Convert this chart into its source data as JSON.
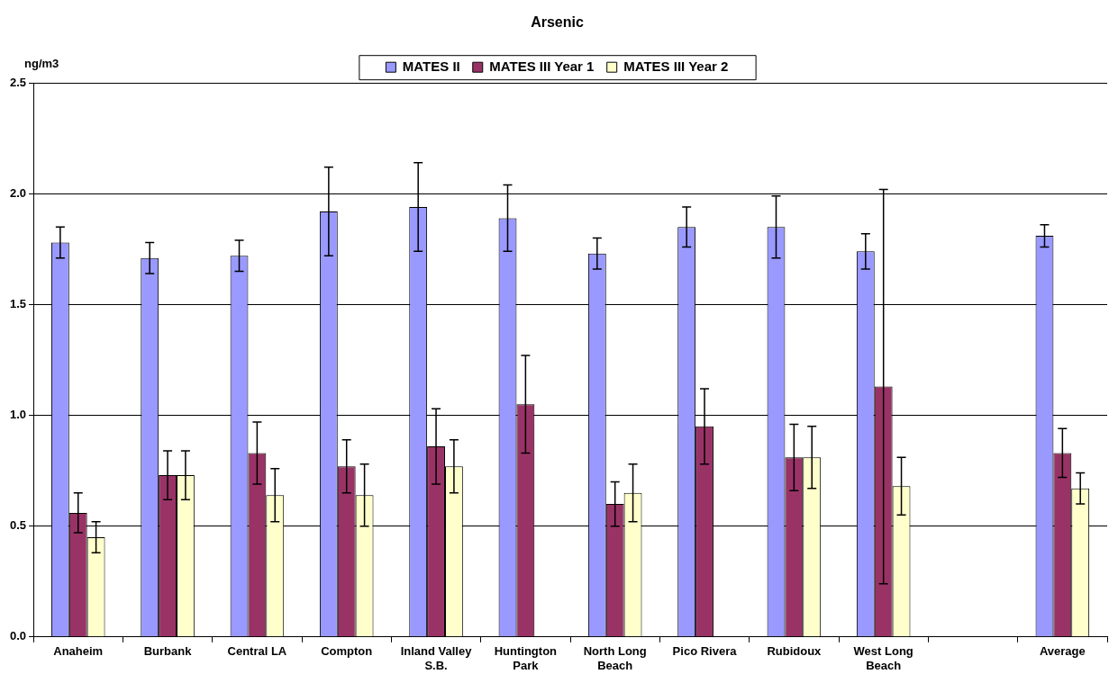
{
  "chart_data": {
    "type": "bar",
    "title": "Arsenic",
    "ylabel": "ng/m3",
    "categories": [
      "Anaheim",
      "Burbank",
      "Central LA",
      "Compton",
      "Inland Valley S.B.",
      "Huntington Park",
      "North Long Beach",
      "Pico Rivera",
      "Rubidoux",
      "West Long Beach",
      null,
      "Average"
    ],
    "series": [
      {
        "name": "MATES II",
        "color": "#9999ff",
        "values": [
          1.78,
          1.71,
          1.72,
          1.92,
          1.94,
          1.89,
          1.73,
          1.85,
          1.85,
          1.74,
          null,
          1.81
        ],
        "errors": [
          0.07,
          0.07,
          0.07,
          0.2,
          0.2,
          0.15,
          0.07,
          0.09,
          0.14,
          0.08,
          null,
          0.05
        ]
      },
      {
        "name": "MATES III Year 1",
        "color": "#993366",
        "values": [
          0.56,
          0.73,
          0.83,
          0.77,
          0.86,
          1.05,
          0.6,
          0.95,
          0.81,
          1.13,
          null,
          0.83
        ],
        "errors": [
          0.09,
          0.11,
          0.14,
          0.12,
          0.17,
          0.22,
          0.1,
          0.17,
          0.15,
          0.89,
          null,
          0.11
        ]
      },
      {
        "name": "MATES III Year 2",
        "color": "#ffffcc",
        "values": [
          0.45,
          0.73,
          0.64,
          0.64,
          0.77,
          null,
          0.65,
          null,
          0.81,
          0.68,
          null,
          0.67
        ],
        "errors": [
          0.07,
          0.11,
          0.12,
          0.14,
          0.12,
          null,
          0.13,
          null,
          0.14,
          0.13,
          null,
          0.07
        ]
      }
    ],
    "ylim": [
      0,
      2.5
    ],
    "yticks": [
      {
        "value": 0,
        "label": "0.0"
      },
      {
        "value": 0.5,
        "label": "0.5"
      },
      {
        "value": 1,
        "label": "1.0"
      },
      {
        "value": 1.5,
        "label": "1.5"
      },
      {
        "value": 2,
        "label": "2.0"
      },
      {
        "value": 2.5,
        "label": "2.5"
      }
    ],
    "grid": "y",
    "legend": "top"
  }
}
